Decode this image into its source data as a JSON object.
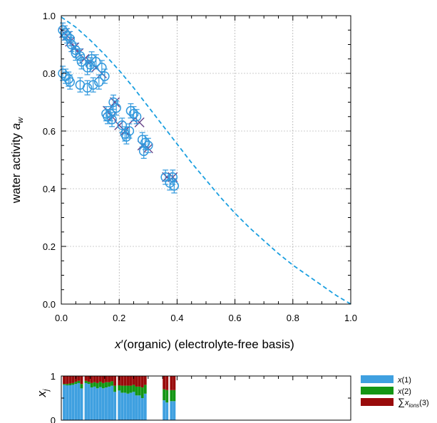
{
  "chart_data": [
    {
      "type": "scatter",
      "xlabel": "x′(organic)  (electrolyte-free basis)",
      "ylabel": "water activity a_w",
      "ylabel_main": "water activity ",
      "ylabel_symbol": "a",
      "ylabel_sub": "w",
      "xlim": [
        0.0,
        1.0
      ],
      "ylim": [
        0.0,
        1.0
      ],
      "xticks": [
        "0.0",
        "0.2",
        "0.4",
        "0.6",
        "0.8",
        "1.0"
      ],
      "yticks": [
        "0.0",
        "0.2",
        "0.4",
        "0.6",
        "0.8",
        "1.0"
      ],
      "grid": true,
      "series": [
        {
          "marker": "circle-with-errorbar",
          "color": "#3399dd",
          "x": [
            0.005,
            0.012,
            0.02,
            0.03,
            0.035,
            0.05,
            0.005,
            0.015,
            0.025,
            0.03,
            0.05,
            0.065,
            0.07,
            0.09,
            0.1,
            0.105,
            0.12,
            0.14,
            0.15,
            0.065,
            0.09,
            0.11,
            0.13,
            0.155,
            0.16,
            0.175,
            0.18,
            0.19,
            0.17,
            0.21,
            0.22,
            0.225,
            0.235,
            0.24,
            0.25,
            0.26,
            0.28,
            0.285,
            0.29,
            0.3,
            0.36,
            0.375,
            0.39,
            0.385
          ],
          "y": [
            0.95,
            0.94,
            0.93,
            0.92,
            0.9,
            0.88,
            0.8,
            0.79,
            0.78,
            0.77,
            0.87,
            0.86,
            0.84,
            0.82,
            0.83,
            0.85,
            0.84,
            0.82,
            0.79,
            0.76,
            0.75,
            0.76,
            0.77,
            0.66,
            0.65,
            0.64,
            0.7,
            0.68,
            0.66,
            0.62,
            0.59,
            0.58,
            0.6,
            0.67,
            0.66,
            0.65,
            0.57,
            0.53,
            0.56,
            0.55,
            0.44,
            0.42,
            0.41,
            0.44
          ]
        },
        {
          "marker": "x-cross",
          "color": "#664488",
          "x": [
            0.01,
            0.02,
            0.03,
            0.045,
            0.06,
            0.08,
            0.1,
            0.12,
            0.14,
            0.16,
            0.175,
            0.185,
            0.2,
            0.22,
            0.25,
            0.27,
            0.28,
            0.3,
            0.365,
            0.385
          ],
          "y": [
            0.94,
            0.93,
            0.91,
            0.89,
            0.87,
            0.85,
            0.84,
            0.82,
            0.8,
            0.67,
            0.65,
            0.7,
            0.62,
            0.6,
            0.64,
            0.63,
            0.55,
            0.54,
            0.44,
            0.44
          ]
        },
        {
          "marker": "dashed-line",
          "color": "#1a9fe0",
          "x": [
            0.0,
            0.05,
            0.1,
            0.15,
            0.2,
            0.25,
            0.3,
            0.35,
            0.4,
            0.45,
            0.5,
            0.55,
            0.6,
            0.65,
            0.7,
            0.75,
            0.8,
            0.85,
            0.9,
            0.95,
            1.0
          ],
          "y": [
            0.995,
            0.96,
            0.915,
            0.865,
            0.81,
            0.75,
            0.685,
            0.62,
            0.555,
            0.49,
            0.43,
            0.37,
            0.315,
            0.265,
            0.22,
            0.175,
            0.135,
            0.1,
            0.065,
            0.03,
            0.0
          ]
        }
      ]
    },
    {
      "type": "bar",
      "stacked": true,
      "ylabel": "x_j",
      "ylabel_symbol": "x",
      "ylabel_sub": "j",
      "xlim": [
        0.0,
        1.0
      ],
      "ylim": [
        0,
        1
      ],
      "yticks": [
        "0",
        "1"
      ],
      "x": [
        0.01,
        0.02,
        0.03,
        0.04,
        0.05,
        0.06,
        0.07,
        0.085,
        0.095,
        0.105,
        0.115,
        0.125,
        0.135,
        0.145,
        0.155,
        0.165,
        0.175,
        0.185,
        0.2,
        0.21,
        0.22,
        0.23,
        0.24,
        0.25,
        0.26,
        0.27,
        0.28,
        0.29,
        0.355,
        0.365,
        0.38,
        0.39
      ],
      "series": [
        {
          "name": "x(1)",
          "color": "#3fa0e0",
          "values": [
            0.8,
            0.79,
            0.79,
            0.8,
            0.82,
            0.84,
            0.72,
            0.84,
            0.82,
            0.74,
            0.76,
            0.72,
            0.75,
            0.72,
            0.74,
            0.76,
            0.78,
            0.64,
            0.67,
            0.62,
            0.62,
            0.6,
            0.62,
            0.64,
            0.56,
            0.56,
            0.5,
            0.6,
            0.45,
            0.4,
            0.43,
            0.43
          ]
        },
        {
          "name": "x(2)",
          "color": "#149614",
          "values": [
            0.02,
            0.03,
            0.04,
            0.04,
            0.05,
            0.05,
            0.1,
            0.05,
            0.05,
            0.1,
            0.1,
            0.12,
            0.12,
            0.12,
            0.12,
            0.1,
            0.1,
            0.14,
            0.12,
            0.16,
            0.16,
            0.18,
            0.16,
            0.16,
            0.2,
            0.2,
            0.24,
            0.2,
            0.25,
            0.28,
            0.25,
            0.25
          ]
        },
        {
          "name": "∑x_ions(3)",
          "color": "#990b0b",
          "values": [
            0.18,
            0.18,
            0.17,
            0.16,
            0.13,
            0.11,
            0.18,
            0.11,
            0.13,
            0.16,
            0.14,
            0.16,
            0.13,
            0.16,
            0.14,
            0.14,
            0.12,
            0.22,
            0.21,
            0.22,
            0.22,
            0.22,
            0.22,
            0.2,
            0.24,
            0.24,
            0.26,
            0.2,
            0.3,
            0.32,
            0.32,
            0.32
          ]
        }
      ]
    }
  ],
  "legend": {
    "items": [
      {
        "symbol": "x",
        "suffix": "(1)",
        "color": "#3fa0e0"
      },
      {
        "symbol": "x",
        "suffix": "(2)",
        "color": "#149614"
      },
      {
        "prefix": "∑",
        "symbol": "x",
        "sub": "ions",
        "suffix": "(3)",
        "color": "#990b0b"
      }
    ]
  }
}
